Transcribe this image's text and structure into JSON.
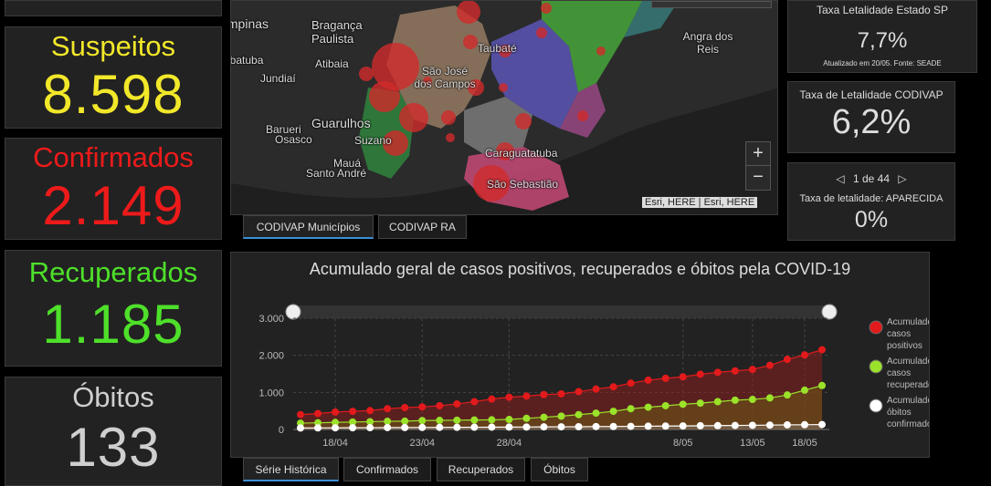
{
  "stats": {
    "suspeitos": {
      "label": "Suspeitos",
      "value": "8.598",
      "color": "#f2e82a"
    },
    "confirmados": {
      "label": "Confirmados",
      "value": "2.149",
      "color": "#ee1a1a"
    },
    "recuperados": {
      "label": "Recuperados",
      "value": "1.185",
      "color": "#4ee02a"
    },
    "obitos": {
      "label": "Óbitos",
      "value": "133",
      "color": "#cfcfcf"
    }
  },
  "map": {
    "labels": [
      "Campinas",
      "Bragança Paulista",
      "Atibaia",
      "Jundiaí",
      "São José dos Campos",
      "Taubaté",
      "Angra dos Reis",
      "Barueri",
      "Osasco",
      "Guarulhos",
      "Suzano",
      "Mauá",
      "Santo André",
      "Caraguatatuba",
      "São Sebastião",
      "Ubatuba"
    ],
    "attribution": "Esri, HERE | Esri, HERE",
    "zoom_in": "+",
    "zoom_out": "−"
  },
  "map_tabs": [
    "CODIVAP Municípios",
    "CODIVAP RA"
  ],
  "right_panels": {
    "estado": {
      "title": "Taxa Letalidade Estado  SP",
      "value": "7,7%",
      "note": "Atualizado em 20/05. Fonte: SEADE"
    },
    "codivap": {
      "title": "Taxa de Letalidade CODIVAP",
      "value": "6,2%"
    },
    "aparecida": {
      "pager": "1 de 44",
      "prev": "◁",
      "next": "▷",
      "title": "Taxa de letalidade: APARECIDA",
      "value": "0%"
    }
  },
  "chart_tabs": [
    "Série Histórica",
    "Confirmados",
    "Recuperados",
    "Óbitos"
  ],
  "chart_data": {
    "type": "line",
    "title": "Acumulado geral de casos positivos, recuperados e óbitos pela COVID-19",
    "ylim": [
      0,
      3000
    ],
    "y_ticks": [
      "3.000",
      "2.000",
      "1.000",
      "0"
    ],
    "x_ticks": [
      "18/04",
      "23/04",
      "28/04",
      "8/05",
      "13/05",
      "18/05"
    ],
    "x": [
      "16/04",
      "17/04",
      "18/04",
      "19/04",
      "20/04",
      "21/04",
      "22/04",
      "23/04",
      "24/04",
      "25/04",
      "26/04",
      "27/04",
      "28/04",
      "29/04",
      "30/04",
      "01/05",
      "02/05",
      "03/05",
      "04/05",
      "05/05",
      "06/05",
      "07/05",
      "08/05",
      "09/05",
      "10/05",
      "11/05",
      "12/05",
      "15/05",
      "17/05",
      "18/05",
      "19/05"
    ],
    "series": [
      {
        "name": "Acumulado de casos positivos",
        "color": "#e31a1c",
        "fill": "rgba(160,30,30,0.45)",
        "values": [
          400,
          430,
          470,
          490,
          510,
          560,
          590,
          610,
          640,
          690,
          750,
          820,
          870,
          900,
          940,
          960,
          1020,
          1090,
          1150,
          1250,
          1330,
          1380,
          1420,
          1490,
          1540,
          1580,
          1620,
          1730,
          1890,
          2010,
          2149
        ]
      },
      {
        "name": "Acumulado de casos recuperados",
        "color": "#9be22a",
        "fill": "rgba(110,90,20,0.55)",
        "values": [
          170,
          180,
          190,
          200,
          210,
          220,
          225,
          240,
          245,
          250,
          255,
          260,
          270,
          300,
          330,
          360,
          400,
          440,
          490,
          560,
          600,
          640,
          680,
          710,
          750,
          790,
          810,
          850,
          930,
          1060,
          1185
        ]
      },
      {
        "name": "Acumulado de óbitos confirmados",
        "color": "#ffffff",
        "fill": "rgba(140,140,140,0.35)",
        "values": [
          40,
          42,
          44,
          46,
          48,
          50,
          52,
          54,
          56,
          58,
          60,
          62,
          64,
          66,
          70,
          72,
          74,
          78,
          80,
          84,
          88,
          92,
          95,
          100,
          104,
          108,
          112,
          118,
          124,
          128,
          133
        ]
      }
    ],
    "legend": "right",
    "grid": true
  }
}
